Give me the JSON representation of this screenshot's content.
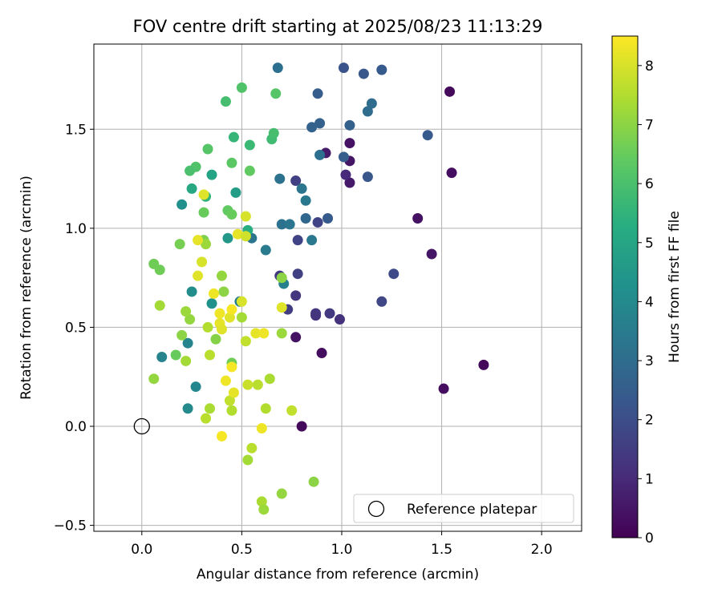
{
  "chart_data": {
    "type": "scatter",
    "title": "FOV centre drift starting at 2025/08/23 11:13:29",
    "xlabel": "Angular distance from reference (arcmin)",
    "ylabel": "Rotation from reference (arcmin)",
    "xlim": [
      -0.24,
      2.2
    ],
    "ylim": [
      -0.53,
      1.93
    ],
    "xticks": [
      {
        "value": 0.0,
        "label": "0.0"
      },
      {
        "value": 0.5,
        "label": "0.5"
      },
      {
        "value": 1.0,
        "label": "1.0"
      },
      {
        "value": 1.5,
        "label": "1.5"
      },
      {
        "value": 2.0,
        "label": "2.0"
      }
    ],
    "yticks": [
      {
        "value": -0.5,
        "label": "−0.5"
      },
      {
        "value": 0.0,
        "label": "0.0"
      },
      {
        "value": 0.5,
        "label": "0.5"
      },
      {
        "value": 1.0,
        "label": "1.0"
      },
      {
        "value": 1.5,
        "label": "1.5"
      }
    ],
    "grid": true,
    "legend": {
      "placement": "lower-right",
      "entries": [
        {
          "label": "Reference platepar",
          "marker": "open-circle"
        }
      ]
    },
    "reference_point": {
      "x": 0.0,
      "y": 0.0
    },
    "colorbar": {
      "label": "Hours from first FF file",
      "colormap": "viridis",
      "range": [
        0,
        8.5
      ],
      "ticks": [
        {
          "value": 0,
          "label": "0"
        },
        {
          "value": 1,
          "label": "1"
        },
        {
          "value": 2,
          "label": "2"
        },
        {
          "value": 3,
          "label": "3"
        },
        {
          "value": 4,
          "label": "4"
        },
        {
          "value": 5,
          "label": "5"
        },
        {
          "value": 6,
          "label": "6"
        },
        {
          "value": 7,
          "label": "7"
        },
        {
          "value": 8,
          "label": "8"
        }
      ]
    },
    "points": [
      [
        1.54,
        1.69,
        0.2
      ],
      [
        1.55,
        1.28,
        0.3
      ],
      [
        1.38,
        1.05,
        0.4
      ],
      [
        1.45,
        0.87,
        0.5
      ],
      [
        1.71,
        0.31,
        0.2
      ],
      [
        1.51,
        0.19,
        0.3
      ],
      [
        1.04,
        1.43,
        0.4
      ],
      [
        1.04,
        1.34,
        0.5
      ],
      [
        1.04,
        1.23,
        0.6
      ],
      [
        0.92,
        1.38,
        0.6
      ],
      [
        0.9,
        0.37,
        0.3
      ],
      [
        0.8,
        0.0,
        0.2
      ],
      [
        0.77,
        0.45,
        0.4
      ],
      [
        1.02,
        1.27,
        1.0
      ],
      [
        0.87,
        0.56,
        1.2
      ],
      [
        0.87,
        0.57,
        1.3
      ],
      [
        0.94,
        0.57,
        1.4
      ],
      [
        0.99,
        0.54,
        1.2
      ],
      [
        0.77,
        0.66,
        1.3
      ],
      [
        0.73,
        0.59,
        1.5
      ],
      [
        0.69,
        0.76,
        1.4
      ],
      [
        0.78,
        0.77,
        1.6
      ],
      [
        0.78,
        0.94,
        1.7
      ],
      [
        0.77,
        1.24,
        1.6
      ],
      [
        0.88,
        1.03,
        1.7
      ],
      [
        1.2,
        0.63,
        1.8
      ],
      [
        1.26,
        0.77,
        1.9
      ],
      [
        1.01,
        1.81,
        2.2
      ],
      [
        1.11,
        1.78,
        2.3
      ],
      [
        1.2,
        1.8,
        2.4
      ],
      [
        1.43,
        1.47,
        2.4
      ],
      [
        1.13,
        1.26,
        2.3
      ],
      [
        0.88,
        1.68,
        2.5
      ],
      [
        0.89,
        1.53,
        2.6
      ],
      [
        0.85,
        1.51,
        2.7
      ],
      [
        1.04,
        1.52,
        2.6
      ],
      [
        1.01,
        1.36,
        2.5
      ],
      [
        0.93,
        1.05,
        2.4
      ],
      [
        0.82,
        1.05,
        2.8
      ],
      [
        1.15,
        1.63,
        3.0
      ],
      [
        1.13,
        1.59,
        3.0
      ],
      [
        0.68,
        1.81,
        3.1
      ],
      [
        0.89,
        1.37,
        3.1
      ],
      [
        0.69,
        1.25,
        3.2
      ],
      [
        0.8,
        1.2,
        3.3
      ],
      [
        0.82,
        1.14,
        3.4
      ],
      [
        0.7,
        1.02,
        3.2
      ],
      [
        0.74,
        1.02,
        3.3
      ],
      [
        0.85,
        0.94,
        3.4
      ],
      [
        0.62,
        0.89,
        3.5
      ],
      [
        0.55,
        0.95,
        3.3
      ],
      [
        0.49,
        0.63,
        3.6
      ],
      [
        0.71,
        0.72,
        3.7
      ],
      [
        0.1,
        0.35,
        3.8
      ],
      [
        0.23,
        0.42,
        3.8
      ],
      [
        0.27,
        0.2,
        3.9
      ],
      [
        0.23,
        0.09,
        4.0
      ],
      [
        0.25,
        0.68,
        4.1
      ],
      [
        0.2,
        1.12,
        4.2
      ],
      [
        0.35,
        0.62,
        4.3
      ],
      [
        0.43,
        0.95,
        4.5
      ],
      [
        0.47,
        1.18,
        4.7
      ],
      [
        0.35,
        1.27,
        4.9
      ],
      [
        0.25,
        1.2,
        5.1
      ],
      [
        0.53,
        0.99,
        5.3
      ],
      [
        0.32,
        1.16,
        5.5
      ],
      [
        0.46,
        1.46,
        5.6
      ],
      [
        0.54,
        1.42,
        5.7
      ],
      [
        0.65,
        1.45,
        5.8
      ],
      [
        0.66,
        1.48,
        5.9
      ],
      [
        0.42,
        1.64,
        5.9
      ],
      [
        0.5,
        1.71,
        6.1
      ],
      [
        0.67,
        1.68,
        6.2
      ],
      [
        0.27,
        1.31,
        6.1
      ],
      [
        0.24,
        1.29,
        6.0
      ],
      [
        0.33,
        1.4,
        6.2
      ],
      [
        0.45,
        1.33,
        6.3
      ],
      [
        0.54,
        1.29,
        6.4
      ],
      [
        0.31,
        1.08,
        6.5
      ],
      [
        0.43,
        1.09,
        6.4
      ],
      [
        0.45,
        1.07,
        6.5
      ],
      [
        0.06,
        0.82,
        6.6
      ],
      [
        0.09,
        0.79,
        6.6
      ],
      [
        0.19,
        0.92,
        6.7
      ],
      [
        0.31,
        0.94,
        6.8
      ],
      [
        0.17,
        0.36,
        6.5
      ],
      [
        0.45,
        0.32,
        6.6
      ],
      [
        0.37,
        0.44,
        6.9
      ],
      [
        0.41,
        0.68,
        7.0
      ],
      [
        0.4,
        0.76,
        7.1
      ],
      [
        0.32,
        0.92,
        7.2
      ],
      [
        0.2,
        0.46,
        7.0
      ],
      [
        0.24,
        0.54,
        7.1
      ],
      [
        0.22,
        0.58,
        7.2
      ],
      [
        0.09,
        0.61,
        7.3
      ],
      [
        0.06,
        0.24,
        7.1
      ],
      [
        0.22,
        0.33,
        7.3
      ],
      [
        0.7,
        0.75,
        7.0
      ],
      [
        0.7,
        0.47,
        7.2
      ],
      [
        0.5,
        0.55,
        7.3
      ],
      [
        0.33,
        0.5,
        7.5
      ],
      [
        0.34,
        0.36,
        7.6
      ],
      [
        0.44,
        0.13,
        7.7
      ],
      [
        0.45,
        0.08,
        7.5
      ],
      [
        0.34,
        0.09,
        7.4
      ],
      [
        0.32,
        0.04,
        7.6
      ],
      [
        0.52,
        0.43,
        7.7
      ],
      [
        0.53,
        0.21,
        7.8
      ],
      [
        0.58,
        0.21,
        7.6
      ],
      [
        0.64,
        0.24,
        7.4
      ],
      [
        0.62,
        0.09,
        7.5
      ],
      [
        0.75,
        0.08,
        7.7
      ],
      [
        0.55,
        -0.11,
        7.6
      ],
      [
        0.53,
        -0.17,
        7.3
      ],
      [
        0.6,
        -0.38,
        7.4
      ],
      [
        0.61,
        -0.42,
        7.2
      ],
      [
        0.7,
        -0.34,
        7.1
      ],
      [
        0.86,
        -0.28,
        7.0
      ],
      [
        0.3,
        0.83,
        8.0
      ],
      [
        0.28,
        0.76,
        8.1
      ],
      [
        0.28,
        0.94,
        8.2
      ],
      [
        0.36,
        0.67,
        8.3
      ],
      [
        0.39,
        0.57,
        8.3
      ],
      [
        0.44,
        0.55,
        8.1
      ],
      [
        0.45,
        0.59,
        8.4
      ],
      [
        0.39,
        0.52,
        8.2
      ],
      [
        0.4,
        0.49,
        8.1
      ],
      [
        0.5,
        0.63,
        8.0
      ],
      [
        0.48,
        0.97,
        8.2
      ],
      [
        0.52,
        1.06,
        8.0
      ],
      [
        0.52,
        0.96,
        7.9
      ],
      [
        0.31,
        1.17,
        8.1
      ],
      [
        0.57,
        0.47,
        8.2
      ],
      [
        0.61,
        0.47,
        8.3
      ],
      [
        0.7,
        0.6,
        8.1
      ],
      [
        0.45,
        0.3,
        8.4
      ],
      [
        0.42,
        0.23,
        8.3
      ],
      [
        0.46,
        0.17,
        8.2
      ],
      [
        0.6,
        -0.01,
        8.3
      ],
      [
        0.4,
        -0.05,
        8.4
      ]
    ]
  }
}
